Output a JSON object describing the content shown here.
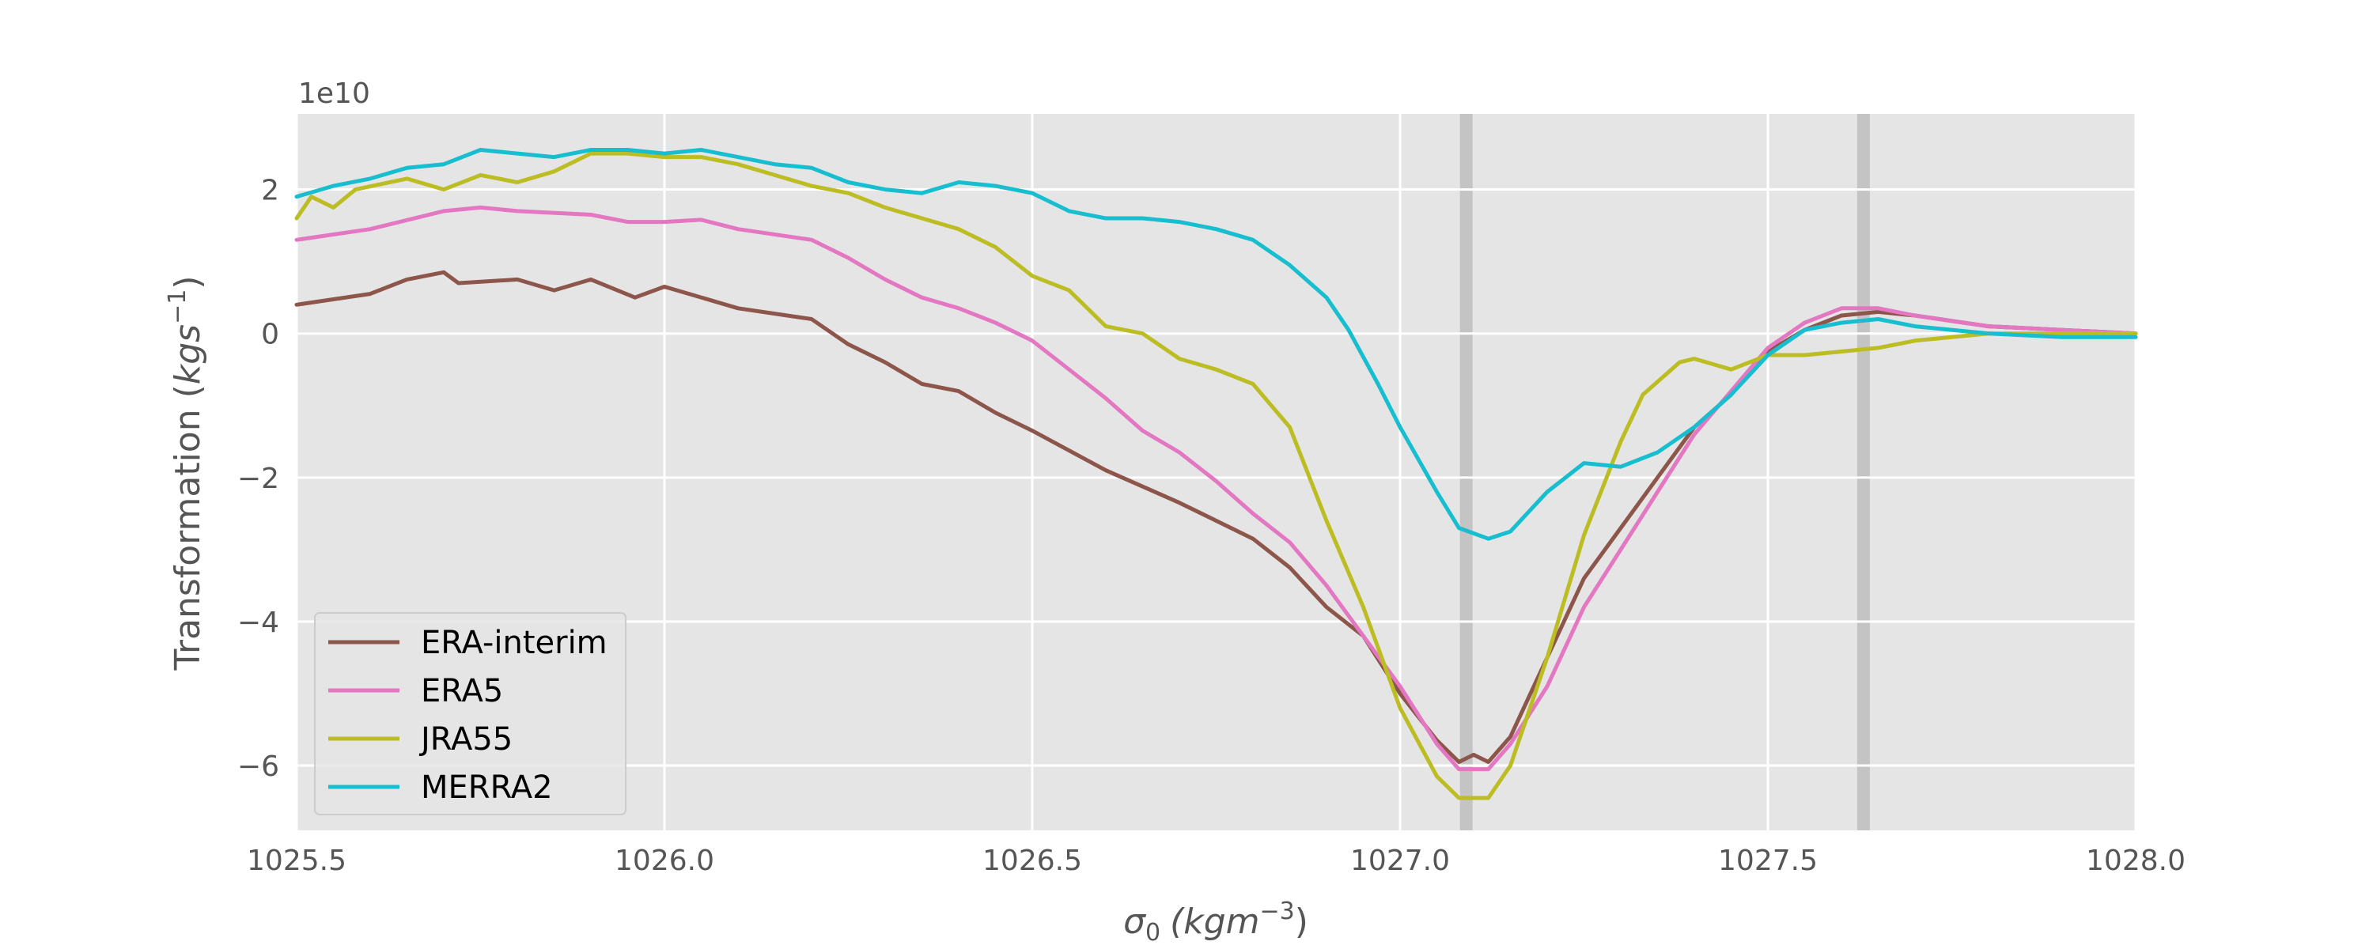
{
  "chart_data": {
    "type": "line",
    "title": "",
    "xlabel_symbol": "σ",
    "xlabel_sub": "0",
    "xlabel_unit": "(kgm",
    "xlabel_exp": "−3",
    "xlabel_close": ")",
    "ylabel_text": "Transformation (",
    "ylabel_unit": "kgs",
    "ylabel_exp": "−1",
    "ylabel_close": ")",
    "y_multiplier": "1e10",
    "xlim": [
      1025.5,
      1028.0
    ],
    "ylim": [
      -6.9,
      3.05
    ],
    "x_ticks": [
      {
        "value": 1025.5,
        "label": "1025.5"
      },
      {
        "value": 1026.0,
        "label": "1026.0"
      },
      {
        "value": 1026.5,
        "label": "1026.5"
      },
      {
        "value": 1027.0,
        "label": "1027.0"
      },
      {
        "value": 1027.5,
        "label": "1027.5"
      },
      {
        "value": 1028.0,
        "label": "1028.0"
      }
    ],
    "y_ticks": [
      {
        "value": 2,
        "label": "2"
      },
      {
        "value": 0,
        "label": "0"
      },
      {
        "value": -2,
        "label": "−2"
      },
      {
        "value": -4,
        "label": "−4"
      },
      {
        "value": -6,
        "label": "−6"
      }
    ],
    "vertical_bands": [
      1027.09,
      1027.63
    ],
    "grid": true,
    "legend_position": "lower-left",
    "series": [
      {
        "name": "ERA-interim",
        "color": "#8c564b",
        "points": [
          [
            1025.5,
            0.4
          ],
          [
            1025.6,
            0.55
          ],
          [
            1025.65,
            0.75
          ],
          [
            1025.7,
            0.85
          ],
          [
            1025.72,
            0.7
          ],
          [
            1025.8,
            0.75
          ],
          [
            1025.85,
            0.6
          ],
          [
            1025.9,
            0.75
          ],
          [
            1025.96,
            0.5
          ],
          [
            1026.0,
            0.65
          ],
          [
            1026.1,
            0.35
          ],
          [
            1026.2,
            0.2
          ],
          [
            1026.25,
            -0.15
          ],
          [
            1026.3,
            -0.4
          ],
          [
            1026.35,
            -0.7
          ],
          [
            1026.4,
            -0.8
          ],
          [
            1026.45,
            -1.1
          ],
          [
            1026.5,
            -1.35
          ],
          [
            1026.6,
            -1.9
          ],
          [
            1026.7,
            -2.35
          ],
          [
            1026.8,
            -2.85
          ],
          [
            1026.85,
            -3.25
          ],
          [
            1026.9,
            -3.8
          ],
          [
            1026.95,
            -4.2
          ],
          [
            1027.0,
            -5.0
          ],
          [
            1027.05,
            -5.65
          ],
          [
            1027.08,
            -5.95
          ],
          [
            1027.1,
            -5.85
          ],
          [
            1027.12,
            -5.95
          ],
          [
            1027.15,
            -5.6
          ],
          [
            1027.2,
            -4.5
          ],
          [
            1027.25,
            -3.4
          ],
          [
            1027.3,
            -2.7
          ],
          [
            1027.35,
            -2.0
          ],
          [
            1027.4,
            -1.3
          ],
          [
            1027.45,
            -0.85
          ],
          [
            1027.5,
            -0.25
          ],
          [
            1027.55,
            0.05
          ],
          [
            1027.6,
            0.25
          ],
          [
            1027.65,
            0.3
          ],
          [
            1027.7,
            0.25
          ],
          [
            1027.8,
            0.1
          ],
          [
            1027.9,
            0.05
          ],
          [
            1028.0,
            0.0
          ]
        ]
      },
      {
        "name": "ERA5",
        "color": "#e377c2",
        "points": [
          [
            1025.5,
            1.3
          ],
          [
            1025.6,
            1.45
          ],
          [
            1025.7,
            1.7
          ],
          [
            1025.75,
            1.75
          ],
          [
            1025.8,
            1.7
          ],
          [
            1025.9,
            1.65
          ],
          [
            1025.95,
            1.55
          ],
          [
            1026.0,
            1.55
          ],
          [
            1026.05,
            1.58
          ],
          [
            1026.1,
            1.45
          ],
          [
            1026.2,
            1.3
          ],
          [
            1026.25,
            1.05
          ],
          [
            1026.3,
            0.75
          ],
          [
            1026.35,
            0.5
          ],
          [
            1026.4,
            0.35
          ],
          [
            1026.45,
            0.15
          ],
          [
            1026.5,
            -0.1
          ],
          [
            1026.55,
            -0.5
          ],
          [
            1026.6,
            -0.9
          ],
          [
            1026.65,
            -1.35
          ],
          [
            1026.7,
            -1.65
          ],
          [
            1026.75,
            -2.05
          ],
          [
            1026.8,
            -2.5
          ],
          [
            1026.85,
            -2.9
          ],
          [
            1026.9,
            -3.5
          ],
          [
            1026.95,
            -4.2
          ],
          [
            1027.0,
            -4.9
          ],
          [
            1027.05,
            -5.7
          ],
          [
            1027.08,
            -6.05
          ],
          [
            1027.12,
            -6.05
          ],
          [
            1027.15,
            -5.7
          ],
          [
            1027.2,
            -4.9
          ],
          [
            1027.25,
            -3.8
          ],
          [
            1027.3,
            -3.0
          ],
          [
            1027.35,
            -2.2
          ],
          [
            1027.4,
            -1.4
          ],
          [
            1027.45,
            -0.8
          ],
          [
            1027.5,
            -0.2
          ],
          [
            1027.55,
            0.15
          ],
          [
            1027.6,
            0.35
          ],
          [
            1027.65,
            0.35
          ],
          [
            1027.7,
            0.25
          ],
          [
            1027.8,
            0.1
          ],
          [
            1027.9,
            0.05
          ],
          [
            1028.0,
            0.0
          ]
        ]
      },
      {
        "name": "JRA55",
        "color": "#bcbd22",
        "points": [
          [
            1025.5,
            1.6
          ],
          [
            1025.52,
            1.9
          ],
          [
            1025.55,
            1.75
          ],
          [
            1025.58,
            2.0
          ],
          [
            1025.65,
            2.15
          ],
          [
            1025.7,
            2.0
          ],
          [
            1025.75,
            2.2
          ],
          [
            1025.8,
            2.1
          ],
          [
            1025.85,
            2.25
          ],
          [
            1025.9,
            2.5
          ],
          [
            1025.95,
            2.5
          ],
          [
            1026.0,
            2.45
          ],
          [
            1026.05,
            2.45
          ],
          [
            1026.1,
            2.35
          ],
          [
            1026.15,
            2.2
          ],
          [
            1026.2,
            2.05
          ],
          [
            1026.25,
            1.95
          ],
          [
            1026.3,
            1.75
          ],
          [
            1026.35,
            1.6
          ],
          [
            1026.4,
            1.45
          ],
          [
            1026.45,
            1.2
          ],
          [
            1026.5,
            0.8
          ],
          [
            1026.55,
            0.6
          ],
          [
            1026.6,
            0.1
          ],
          [
            1026.65,
            0.0
          ],
          [
            1026.7,
            -0.35
          ],
          [
            1026.75,
            -0.5
          ],
          [
            1026.8,
            -0.7
          ],
          [
            1026.85,
            -1.3
          ],
          [
            1026.9,
            -2.6
          ],
          [
            1026.95,
            -3.8
          ],
          [
            1027.0,
            -5.2
          ],
          [
            1027.05,
            -6.15
          ],
          [
            1027.08,
            -6.45
          ],
          [
            1027.12,
            -6.45
          ],
          [
            1027.15,
            -6.0
          ],
          [
            1027.2,
            -4.5
          ],
          [
            1027.25,
            -2.8
          ],
          [
            1027.3,
            -1.5
          ],
          [
            1027.33,
            -0.85
          ],
          [
            1027.38,
            -0.4
          ],
          [
            1027.4,
            -0.35
          ],
          [
            1027.45,
            -0.5
          ],
          [
            1027.5,
            -0.3
          ],
          [
            1027.55,
            -0.3
          ],
          [
            1027.6,
            -0.25
          ],
          [
            1027.65,
            -0.2
          ],
          [
            1027.7,
            -0.1
          ],
          [
            1027.8,
            0.0
          ],
          [
            1027.9,
            0.0
          ],
          [
            1028.0,
            0.0
          ]
        ]
      },
      {
        "name": "MERRA2",
        "color": "#17becf",
        "points": [
          [
            1025.5,
            1.9
          ],
          [
            1025.55,
            2.05
          ],
          [
            1025.6,
            2.15
          ],
          [
            1025.65,
            2.3
          ],
          [
            1025.7,
            2.35
          ],
          [
            1025.75,
            2.55
          ],
          [
            1025.8,
            2.5
          ],
          [
            1025.85,
            2.45
          ],
          [
            1025.9,
            2.55
          ],
          [
            1025.95,
            2.55
          ],
          [
            1026.0,
            2.5
          ],
          [
            1026.05,
            2.55
          ],
          [
            1026.1,
            2.45
          ],
          [
            1026.15,
            2.35
          ],
          [
            1026.2,
            2.3
          ],
          [
            1026.25,
            2.1
          ],
          [
            1026.3,
            2.0
          ],
          [
            1026.35,
            1.95
          ],
          [
            1026.4,
            2.1
          ],
          [
            1026.45,
            2.05
          ],
          [
            1026.5,
            1.95
          ],
          [
            1026.55,
            1.7
          ],
          [
            1026.6,
            1.6
          ],
          [
            1026.65,
            1.6
          ],
          [
            1026.7,
            1.55
          ],
          [
            1026.75,
            1.45
          ],
          [
            1026.8,
            1.3
          ],
          [
            1026.85,
            0.95
          ],
          [
            1026.9,
            0.5
          ],
          [
            1026.93,
            0.05
          ],
          [
            1026.97,
            -0.7
          ],
          [
            1027.0,
            -1.3
          ],
          [
            1027.05,
            -2.2
          ],
          [
            1027.08,
            -2.7
          ],
          [
            1027.12,
            -2.85
          ],
          [
            1027.15,
            -2.75
          ],
          [
            1027.2,
            -2.2
          ],
          [
            1027.25,
            -1.8
          ],
          [
            1027.3,
            -1.85
          ],
          [
            1027.35,
            -1.65
          ],
          [
            1027.4,
            -1.3
          ],
          [
            1027.45,
            -0.85
          ],
          [
            1027.5,
            -0.3
          ],
          [
            1027.55,
            0.05
          ],
          [
            1027.6,
            0.15
          ],
          [
            1027.65,
            0.2
          ],
          [
            1027.7,
            0.1
          ],
          [
            1027.8,
            0.0
          ],
          [
            1027.9,
            -0.05
          ],
          [
            1028.0,
            -0.05
          ]
        ]
      }
    ]
  }
}
